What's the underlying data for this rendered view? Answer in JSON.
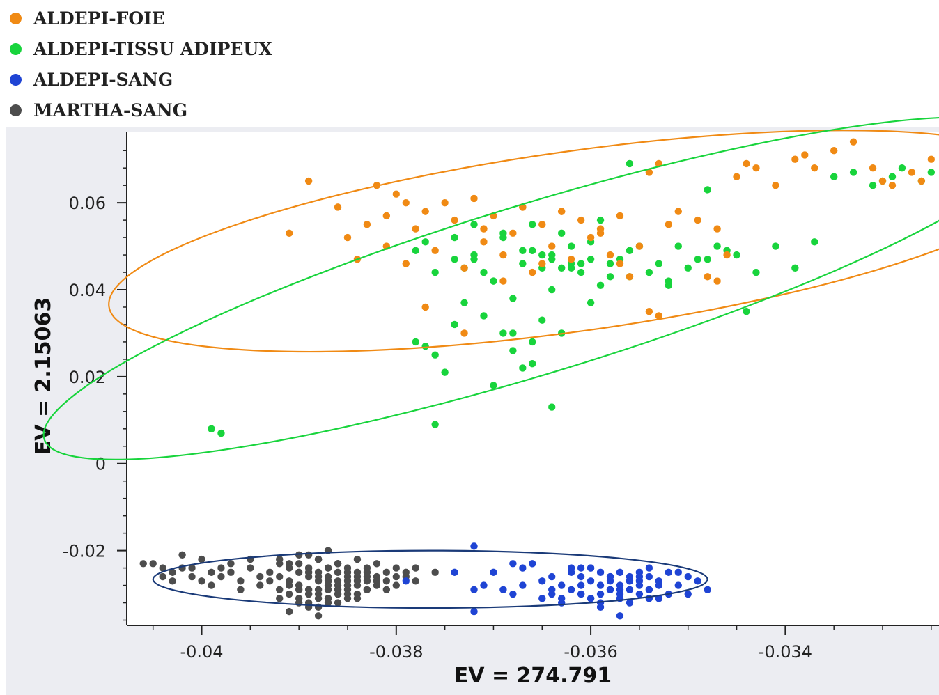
{
  "legend": {
    "items": [
      {
        "label": "ALDEPI-FOIE",
        "color": "#f08a14"
      },
      {
        "label": "ALDEPI-TISSU ADIPEUX",
        "color": "#18d43c"
      },
      {
        "label": "ALDEPI-SANG",
        "color": "#1f44d4"
      },
      {
        "label": "MARTHA-SANG",
        "color": "#4d4d4d"
      }
    ]
  },
  "chart_data": {
    "type": "scatter",
    "title": "",
    "xlabel": "EV = 274.791",
    "ylabel": "EV = 2.15063",
    "xlim": [
      -0.04077,
      -0.03242
    ],
    "ylim": [
      -0.0372,
      0.0762
    ],
    "xticks": [
      -0.04,
      -0.038,
      -0.036,
      -0.034
    ],
    "xtick_labels": [
      "-0.04",
      "-0.038",
      "-0.036",
      "-0.034"
    ],
    "yticks": [
      -0.02,
      0,
      0.02,
      0.04,
      0.06
    ],
    "ytick_labels": [
      "-0.02",
      "0",
      "0.02",
      "0.04",
      "0.06"
    ],
    "grid": false,
    "legend_position": "top-left",
    "background": "#ecedf2",
    "series": [
      {
        "name": "ALDEPI-FOIE",
        "color": "#f08a14",
        "x": [
          -0.0391,
          -0.0389,
          -0.0386,
          -0.0385,
          -0.0384,
          -0.0383,
          -0.0382,
          -0.0381,
          -0.038,
          -0.0379,
          -0.0378,
          -0.0377,
          -0.0376,
          -0.0375,
          -0.0374,
          -0.0373,
          -0.0372,
          -0.0371,
          -0.037,
          -0.0369,
          -0.0368,
          -0.0367,
          -0.0366,
          -0.0365,
          -0.0364,
          -0.0363,
          -0.0362,
          -0.0361,
          -0.036,
          -0.0359,
          -0.0358,
          -0.0357,
          -0.0356,
          -0.0355,
          -0.0354,
          -0.0353,
          -0.0352,
          -0.0351,
          -0.0349,
          -0.0348,
          -0.0347,
          -0.0346,
          -0.0345,
          -0.0344,
          -0.0343,
          -0.0341,
          -0.0339,
          -0.0338,
          -0.0337,
          -0.0335,
          -0.0333,
          -0.0331,
          -0.033,
          -0.0329,
          -0.0327,
          -0.0326,
          -0.0325,
          -0.0377,
          -0.0373,
          -0.0367,
          -0.0363,
          -0.0357,
          -0.0353,
          -0.0347,
          -0.0379,
          -0.0371,
          -0.0365,
          -0.0359,
          -0.0354,
          -0.0381,
          -0.0369
        ],
        "y": [
          0.053,
          0.065,
          0.059,
          0.052,
          0.047,
          0.055,
          0.064,
          0.05,
          0.062,
          0.046,
          0.054,
          0.058,
          0.049,
          0.06,
          0.056,
          0.045,
          0.061,
          0.051,
          0.057,
          0.048,
          0.053,
          0.059,
          0.044,
          0.055,
          0.05,
          0.058,
          0.047,
          0.056,
          0.052,
          0.054,
          0.048,
          0.057,
          0.043,
          0.05,
          0.067,
          0.069,
          0.055,
          0.058,
          0.056,
          0.043,
          0.054,
          0.048,
          0.066,
          0.069,
          0.068,
          0.064,
          0.07,
          0.071,
          0.068,
          0.072,
          0.074,
          0.068,
          0.065,
          0.064,
          0.067,
          0.065,
          0.07,
          0.036,
          0.03,
          0.059,
          0.058,
          0.046,
          0.034,
          0.042,
          0.06,
          0.054,
          0.046,
          0.053,
          0.035,
          0.057,
          0.042
        ]
      },
      {
        "name": "ALDEPI-TISSU ADIPEUX",
        "color": "#18d43c",
        "x": [
          -0.0399,
          -0.0398,
          -0.0378,
          -0.0377,
          -0.0375,
          -0.0374,
          -0.0373,
          -0.0372,
          -0.0371,
          -0.037,
          -0.0369,
          -0.0368,
          -0.0367,
          -0.0366,
          -0.0365,
          -0.0364,
          -0.0363,
          -0.0362,
          -0.0361,
          -0.036,
          -0.0359,
          -0.0358,
          -0.0357,
          -0.0356,
          -0.0355,
          -0.0354,
          -0.0353,
          -0.0352,
          -0.0351,
          -0.035,
          -0.0349,
          -0.0348,
          -0.0347,
          -0.0346,
          -0.0345,
          -0.0343,
          -0.0341,
          -0.0339,
          -0.0337,
          -0.0335,
          -0.0333,
          -0.0331,
          -0.033,
          -0.0329,
          -0.0328,
          -0.0326,
          -0.0325,
          -0.0376,
          -0.0374,
          -0.0372,
          -0.037,
          -0.0368,
          -0.0366,
          -0.0364,
          -0.0362,
          -0.036,
          -0.0358,
          -0.0356,
          -0.0378,
          -0.0376,
          -0.0374,
          -0.0372,
          -0.037,
          -0.0368,
          -0.0366,
          -0.0364,
          -0.0362,
          -0.0367,
          -0.0365,
          -0.0363,
          -0.0361,
          -0.0359,
          -0.0376,
          -0.0369,
          -0.0363,
          -0.0367,
          -0.0365,
          -0.0371,
          -0.0373,
          -0.0399,
          -0.0377,
          -0.0364,
          -0.036,
          -0.0356,
          -0.0352,
          -0.0348,
          -0.0344,
          -0.0366,
          -0.0369
        ],
        "y": [
          0.008,
          0.007,
          0.049,
          0.027,
          0.021,
          0.047,
          0.037,
          0.055,
          0.044,
          0.042,
          0.052,
          0.038,
          0.046,
          0.049,
          0.045,
          0.048,
          0.053,
          0.05,
          0.046,
          0.051,
          0.056,
          0.043,
          0.047,
          0.049,
          0.05,
          0.044,
          0.046,
          0.041,
          0.05,
          0.045,
          0.047,
          0.063,
          0.05,
          0.049,
          0.048,
          0.044,
          0.05,
          0.045,
          0.051,
          0.066,
          0.067,
          0.064,
          0.065,
          0.066,
          0.068,
          0.065,
          0.067,
          0.025,
          0.032,
          0.048,
          0.042,
          0.03,
          0.028,
          0.04,
          0.045,
          0.037,
          0.046,
          0.069,
          0.028,
          0.044,
          0.052,
          0.047,
          0.018,
          0.026,
          0.023,
          0.047,
          0.046,
          0.049,
          0.048,
          0.045,
          0.044,
          0.041,
          0.009,
          0.03,
          0.03,
          0.022,
          0.033,
          0.034,
          0.045,
          0.008,
          0.051,
          0.013,
          0.047,
          0.043,
          0.042,
          0.047,
          0.035,
          0.055,
          0.053
        ]
      },
      {
        "name": "ALDEPI-SANG",
        "color": "#1f44d4",
        "x": [
          -0.0379,
          -0.0372,
          -0.0372,
          -0.0372,
          -0.037,
          -0.0369,
          -0.0368,
          -0.0367,
          -0.0367,
          -0.0366,
          -0.0365,
          -0.0365,
          -0.0364,
          -0.0364,
          -0.0363,
          -0.0363,
          -0.0362,
          -0.0362,
          -0.0361,
          -0.0361,
          -0.0361,
          -0.036,
          -0.036,
          -0.036,
          -0.0359,
          -0.0359,
          -0.0359,
          -0.0358,
          -0.0358,
          -0.0358,
          -0.0357,
          -0.0357,
          -0.0357,
          -0.0356,
          -0.0356,
          -0.0356,
          -0.0355,
          -0.0355,
          -0.0355,
          -0.0354,
          -0.0354,
          -0.0353,
          -0.0353,
          -0.0352,
          -0.0351,
          -0.035,
          -0.0349,
          -0.0348,
          -0.0374,
          -0.0371,
          -0.0368,
          -0.0364,
          -0.0362,
          -0.0361,
          -0.036,
          -0.0359,
          -0.0358,
          -0.0357,
          -0.0356,
          -0.0355,
          -0.0354,
          -0.0353,
          -0.0352,
          -0.0351,
          -0.036,
          -0.0358,
          -0.0357,
          -0.0356,
          -0.0359,
          -0.0363,
          -0.0361,
          -0.0357,
          -0.0355,
          -0.0354,
          -0.035,
          -0.0353
        ],
        "y": [
          -0.027,
          -0.019,
          -0.029,
          -0.034,
          -0.025,
          -0.029,
          -0.03,
          -0.024,
          -0.028,
          -0.023,
          -0.027,
          -0.031,
          -0.026,
          -0.03,
          -0.028,
          -0.032,
          -0.025,
          -0.029,
          -0.026,
          -0.028,
          -0.03,
          -0.024,
          -0.027,
          -0.031,
          -0.025,
          -0.028,
          -0.03,
          -0.026,
          -0.029,
          -0.027,
          -0.025,
          -0.028,
          -0.031,
          -0.026,
          -0.029,
          -0.027,
          -0.025,
          -0.028,
          -0.03,
          -0.026,
          -0.029,
          -0.027,
          -0.031,
          -0.025,
          -0.028,
          -0.026,
          -0.027,
          -0.029,
          -0.025,
          -0.028,
          -0.023,
          -0.029,
          -0.024,
          -0.03,
          -0.024,
          -0.032,
          -0.029,
          -0.035,
          -0.027,
          -0.026,
          -0.031,
          -0.028,
          -0.03,
          -0.025,
          -0.031,
          -0.026,
          -0.029,
          -0.032,
          -0.033,
          -0.031,
          -0.024,
          -0.03,
          -0.027,
          -0.024,
          -0.03,
          -0.031
        ]
      },
      {
        "name": "MARTHA-SANG",
        "color": "#4d4d4d",
        "x": [
          -0.0406,
          -0.0405,
          -0.0404,
          -0.0404,
          -0.0403,
          -0.0403,
          -0.0402,
          -0.0402,
          -0.0401,
          -0.0401,
          -0.04,
          -0.04,
          -0.0399,
          -0.0399,
          -0.0398,
          -0.0398,
          -0.0397,
          -0.0397,
          -0.0396,
          -0.0396,
          -0.0395,
          -0.0395,
          -0.0394,
          -0.0394,
          -0.0393,
          -0.0393,
          -0.0392,
          -0.0392,
          -0.0392,
          -0.0391,
          -0.0391,
          -0.0391,
          -0.039,
          -0.039,
          -0.039,
          -0.039,
          -0.0389,
          -0.0389,
          -0.0389,
          -0.0389,
          -0.0388,
          -0.0388,
          -0.0388,
          -0.0388,
          -0.0388,
          -0.0387,
          -0.0387,
          -0.0387,
          -0.0387,
          -0.0387,
          -0.0386,
          -0.0386,
          -0.0386,
          -0.0386,
          -0.0386,
          -0.0385,
          -0.0385,
          -0.0385,
          -0.0385,
          -0.0385,
          -0.0384,
          -0.0384,
          -0.0384,
          -0.0384,
          -0.0383,
          -0.0383,
          -0.0383,
          -0.0383,
          -0.0382,
          -0.0382,
          -0.0382,
          -0.0381,
          -0.0381,
          -0.0381,
          -0.038,
          -0.038,
          -0.038,
          -0.0379,
          -0.0379,
          -0.0378,
          -0.0378,
          -0.0376,
          -0.0392,
          -0.0391,
          -0.039,
          -0.0389,
          -0.0388,
          -0.0387,
          -0.0386,
          -0.0385,
          -0.0384,
          -0.0383,
          -0.039,
          -0.0389,
          -0.0388,
          -0.0387,
          -0.0386,
          -0.0385,
          -0.0389,
          -0.0388,
          -0.0387,
          -0.0386,
          -0.0392,
          -0.0391,
          -0.039,
          -0.0389,
          -0.0388,
          -0.0387,
          -0.0386,
          -0.0385,
          -0.0384,
          -0.0383,
          -0.0382,
          -0.0391,
          -0.039,
          -0.0389,
          -0.0388,
          -0.0387,
          -0.0386,
          -0.0385,
          -0.0384,
          -0.0388,
          -0.0387,
          -0.0389,
          -0.0386
        ],
        "y": [
          -0.023,
          -0.023,
          -0.026,
          -0.024,
          -0.027,
          -0.025,
          -0.024,
          -0.021,
          -0.026,
          -0.024,
          -0.027,
          -0.022,
          -0.025,
          -0.028,
          -0.024,
          -0.026,
          -0.023,
          -0.025,
          -0.027,
          -0.029,
          -0.024,
          -0.022,
          -0.026,
          -0.028,
          -0.025,
          -0.027,
          -0.023,
          -0.026,
          -0.029,
          -0.024,
          -0.027,
          -0.03,
          -0.025,
          -0.028,
          -0.023,
          -0.031,
          -0.026,
          -0.029,
          -0.024,
          -0.032,
          -0.027,
          -0.025,
          -0.03,
          -0.022,
          -0.033,
          -0.028,
          -0.026,
          -0.031,
          -0.024,
          -0.029,
          -0.027,
          -0.025,
          -0.03,
          -0.023,
          -0.028,
          -0.026,
          -0.029,
          -0.024,
          -0.031,
          -0.027,
          -0.025,
          -0.028,
          -0.03,
          -0.026,
          -0.027,
          -0.024,
          -0.029,
          -0.025,
          -0.026,
          -0.028,
          -0.023,
          -0.027,
          -0.025,
          -0.029,
          -0.026,
          -0.024,
          -0.028,
          -0.026,
          -0.025,
          -0.027,
          -0.024,
          -0.025,
          -0.031,
          -0.034,
          -0.028,
          -0.033,
          -0.035,
          -0.031,
          -0.032,
          -0.03,
          -0.031,
          -0.029,
          -0.032,
          -0.03,
          -0.029,
          -0.027,
          -0.03,
          -0.028,
          -0.021,
          -0.022,
          -0.02,
          -0.023,
          -0.022,
          -0.023,
          -0.021,
          -0.024,
          -0.022,
          -0.024,
          -0.023,
          -0.025,
          -0.022,
          -0.026,
          -0.027,
          -0.028,
          -0.029,
          -0.03,
          -0.031,
          -0.032,
          -0.029,
          -0.028,
          -0.027,
          -0.026,
          -0.027,
          -0.025,
          -0.029
        ]
      }
    ],
    "annotations": [
      {
        "shape": "ellipse",
        "group": "ALDEPI-FOIE",
        "color": "#f08a14",
        "cx": -0.03615,
        "cy": 0.0512,
        "rx": 0.00485,
        "ry": 0.0207,
        "angle_deg": -8
      },
      {
        "shape": "ellipse",
        "group": "ALDEPI-TISSU ADIPEUX",
        "color": "#18d43c",
        "cx": -0.03655,
        "cy": 0.0403,
        "rx": 0.0053,
        "ry": 0.0195,
        "angle_deg": -17
      },
      {
        "shape": "ellipse",
        "group": "ALDEPI-SANG + MARTHA-SANG",
        "color": "#1a3a78",
        "cx": -0.03765,
        "cy": -0.0266,
        "rx": 0.00285,
        "ry": 0.0066,
        "angle_deg": 0
      }
    ]
  }
}
